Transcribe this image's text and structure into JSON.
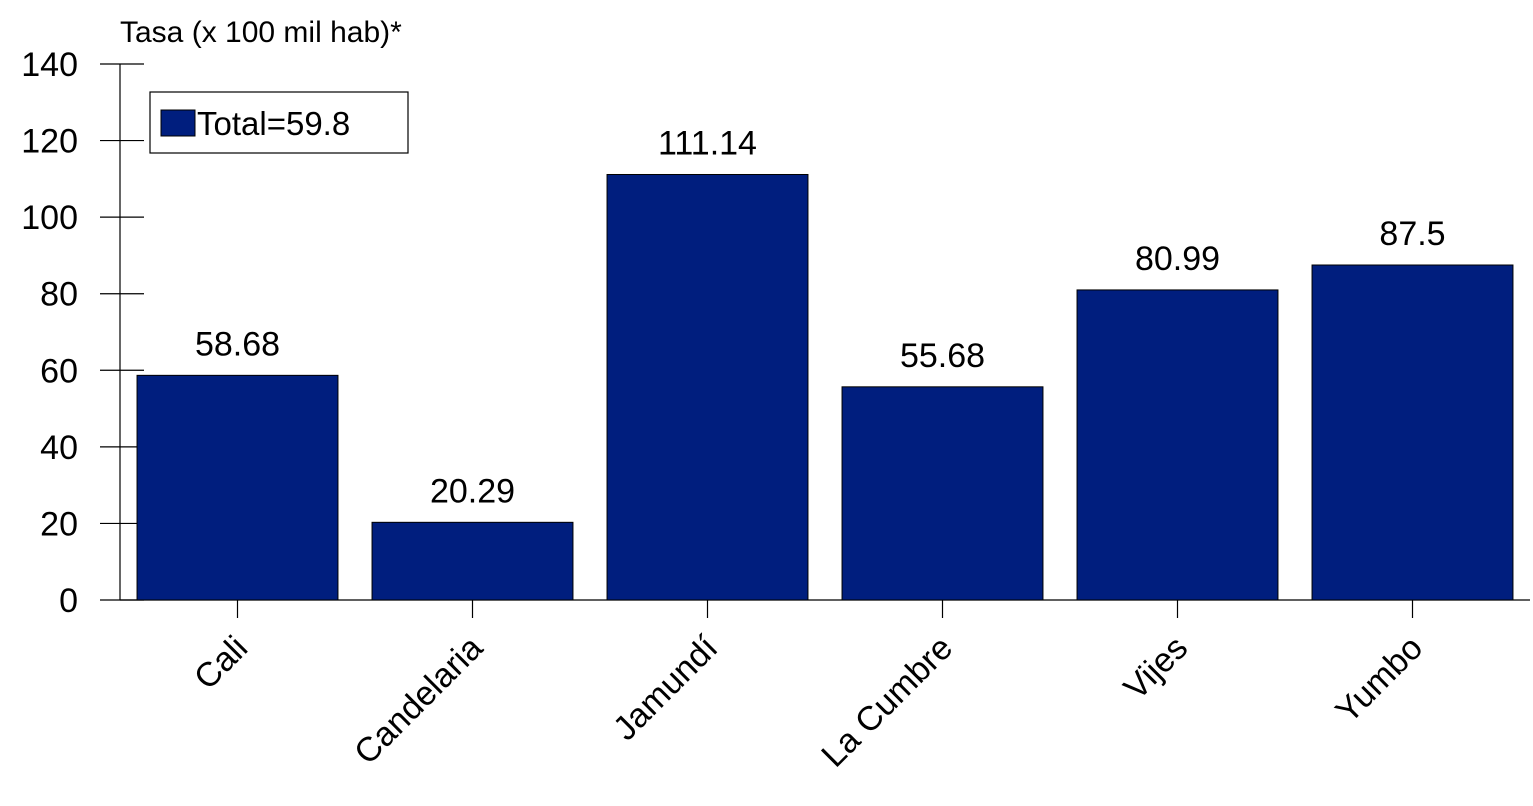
{
  "chart_data": {
    "type": "bar",
    "title": "",
    "ylabel": "Tasa (x 100 mil hab)*",
    "xlabel": "",
    "categories": [
      "Cali",
      "Candelaria",
      "Jamundí",
      "La Cumbre",
      "Vijes",
      "Yumbo"
    ],
    "series": [
      {
        "name": "Total=59.8",
        "values": [
          58.68,
          20.29,
          111.14,
          55.68,
          80.99,
          87.5
        ],
        "value_labels": [
          "58.68",
          "20.29",
          "111.14",
          "55.68",
          "80.99",
          "87.5"
        ],
        "color": "#001e7e"
      }
    ],
    "ylim": [
      0,
      140
    ],
    "yticks": [
      0,
      20,
      40,
      60,
      80,
      100,
      120,
      140
    ],
    "ytick_labels": [
      "0",
      "20",
      "40",
      "60",
      "80",
      "100",
      "120",
      "140"
    ],
    "grid": false,
    "legend": {
      "position": "top-left",
      "entries": [
        "Total=59.8"
      ]
    }
  }
}
